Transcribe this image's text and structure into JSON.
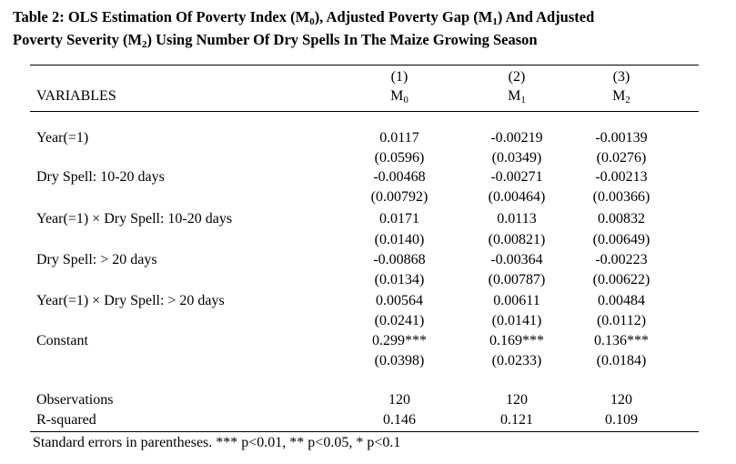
{
  "title_line1_a": "Table 2: OLS Estimation Of Poverty Index (M",
  "title_line1_s0": "0",
  "title_line1_b": "), Adjusted Poverty Gap (M",
  "title_line1_s1": "1",
  "title_line1_c": ") And Adjusted",
  "title_line2_a": "Poverty Severity (M",
  "title_line2_s2": "2",
  "title_line2_b": ") Using Number Of Dry Spells In The Maize Growing Season",
  "header": {
    "variables": "VARIABLES",
    "columns": [
      {
        "num": "(1)",
        "m": "M",
        "sub": "0"
      },
      {
        "num": "(2)",
        "m": "M",
        "sub": "1"
      },
      {
        "num": "(3)",
        "m": "M",
        "sub": "2"
      }
    ]
  },
  "rows": [
    {
      "label": "Year(=1)",
      "coef": [
        "0.0117",
        "-0.00219",
        "-0.00139"
      ],
      "se": [
        "(0.0596)",
        "(0.0349)",
        "(0.0276)"
      ]
    },
    {
      "label": "Dry Spell: 10-20 days",
      "coef": [
        "-0.00468",
        "-0.00271",
        "-0.00213"
      ],
      "se": [
        "(0.00792)",
        "(0.00464)",
        "(0.00366)"
      ]
    },
    {
      "label": "Year(=1) × Dry Spell: 10-20 days",
      "coef": [
        "0.0171",
        "0.0113",
        "0.00832"
      ],
      "se": [
        "(0.0140)",
        "(0.00821)",
        "(0.00649)"
      ]
    },
    {
      "label": "Dry Spell: > 20 days",
      "coef": [
        "-0.00868",
        "-0.00364",
        "-0.00223"
      ],
      "se": [
        "(0.0134)",
        "(0.00787)",
        "(0.00622)"
      ]
    },
    {
      "label": "Year(=1) × Dry Spell: > 20 days",
      "coef": [
        "0.00564",
        "0.00611",
        "0.00484"
      ],
      "se": [
        "(0.0241)",
        "(0.0141)",
        "(0.0112)"
      ]
    },
    {
      "label": "Constant",
      "coef": [
        "0.299***",
        "0.169***",
        "0.136***"
      ],
      "se": [
        "(0.0398)",
        "(0.0233)",
        "(0.0184)"
      ]
    }
  ],
  "stats": [
    {
      "label": "Observations",
      "values": [
        "120",
        "120",
        "120"
      ]
    },
    {
      "label": "R-squared",
      "values": [
        "0.146",
        "0.121",
        "0.109"
      ]
    }
  ],
  "note": "Standard errors in parentheses. *** p<0.01, ** p<0.05, * p<0.1"
}
